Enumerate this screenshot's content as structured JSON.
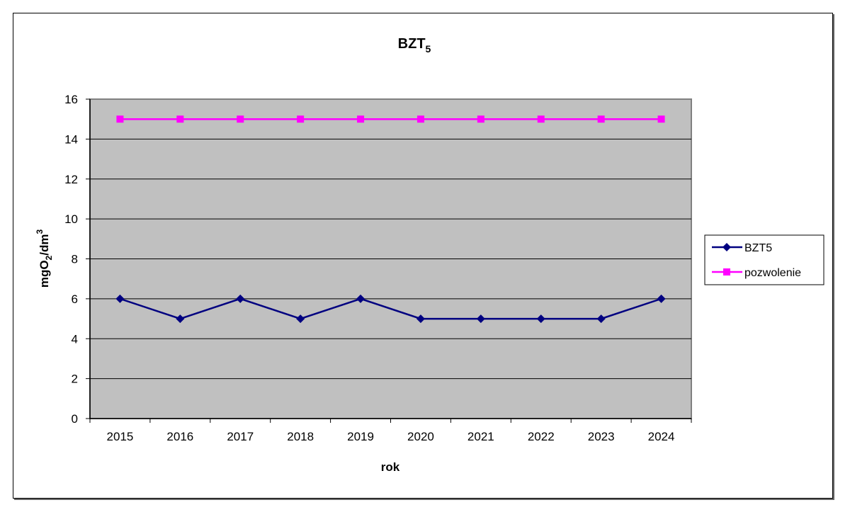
{
  "chart_data": {
    "type": "line",
    "title": "BZT",
    "title_subscript": "5",
    "xlabel": "rok",
    "ylabel": "mgO2/dm3",
    "ylabel_parts": {
      "base": "mgO",
      "sub": "2",
      "mid": "/dm",
      "sup": "3"
    },
    "categories": [
      "2015",
      "2016",
      "2017",
      "2018",
      "2019",
      "2020",
      "2021",
      "2022",
      "2023",
      "2024"
    ],
    "series": [
      {
        "name": "BZT5",
        "color": "#000080",
        "marker": "diamond",
        "values": [
          6,
          5,
          6,
          5,
          6,
          5,
          5,
          5,
          5,
          6
        ]
      },
      {
        "name": "pozwolenie",
        "color": "#ff00ff",
        "marker": "square",
        "values": [
          15,
          15,
          15,
          15,
          15,
          15,
          15,
          15,
          15,
          15
        ]
      }
    ],
    "ylim": [
      0,
      16
    ],
    "yticks": [
      0,
      2,
      4,
      6,
      8,
      10,
      12,
      14,
      16
    ],
    "grid": true,
    "plot_background": "#c0c0c0",
    "legend_position": "right"
  }
}
